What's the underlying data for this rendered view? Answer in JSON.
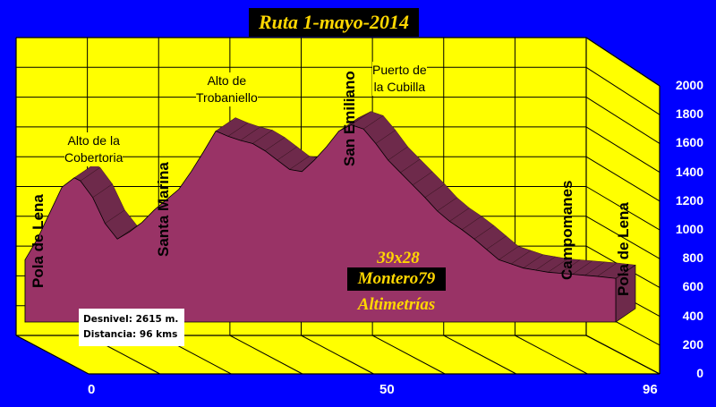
{
  "title": "Ruta 1-mayo-2014",
  "colors": {
    "background": "#0000ff",
    "wall": "#ffff00",
    "profile": "#993366",
    "profile_dark": "#5a1f3c",
    "text_gold": "#ffd700"
  },
  "chart_data": {
    "type": "area",
    "title": "Ruta 1-mayo-2014",
    "xlabel": "",
    "ylabel": "",
    "xlim": [
      0,
      96
    ],
    "ylim": [
      0,
      2000
    ],
    "x_ticks": [
      "0",
      "50",
      "96"
    ],
    "y_ticks": [
      "0",
      "200",
      "400",
      "600",
      "800",
      "1000",
      "1200",
      "1400",
      "1600",
      "1800",
      "2000"
    ],
    "grid": true,
    "series": [
      {
        "x": [
          0,
          2,
          4,
          6,
          8,
          9,
          11,
          13,
          15,
          17,
          19,
          21,
          23,
          25,
          27,
          29,
          31,
          33,
          35,
          37,
          39,
          41,
          43,
          45,
          47,
          49,
          51,
          53,
          55,
          57,
          59,
          61,
          63,
          65,
          67,
          69,
          71,
          73,
          75,
          77,
          79,
          81,
          83,
          85,
          87,
          89,
          91,
          93,
          96
        ],
        "y": [
          600,
          800,
          1050,
          1300,
          1390,
          1360,
          1200,
          950,
          800,
          870,
          960,
          1080,
          1180,
          1280,
          1450,
          1640,
          1840,
          1790,
          1750,
          1720,
          1650,
          1560,
          1470,
          1450,
          1560,
          1690,
          1840,
          1900,
          1860,
          1720,
          1560,
          1440,
          1320,
          1200,
          1070,
          970,
          890,
          800,
          700,
          600,
          560,
          520,
          500,
          480,
          470,
          460,
          450,
          440,
          420
        ]
      }
    ],
    "annotations": [
      {
        "text": "Pola de Lena",
        "x": 0,
        "orientation": "vertical"
      },
      {
        "text": "Alto de la Cobertoria",
        "x": 8,
        "orientation": "horizontal"
      },
      {
        "text": "Santa Marina",
        "x": 19,
        "orientation": "vertical"
      },
      {
        "text": "Alto de Trobaniello",
        "x": 31,
        "orientation": "horizontal"
      },
      {
        "text": "San Emiliano",
        "x": 45,
        "orientation": "vertical"
      },
      {
        "text": "Puerto de la Cubilla",
        "x": 53,
        "orientation": "horizontal"
      },
      {
        "text": "Campomanes",
        "x": 83,
        "orientation": "vertical"
      },
      {
        "text": "Pola de Lena",
        "x": 96,
        "orientation": "vertical"
      }
    ]
  },
  "labels": {
    "pola_start": "Pola de Lena",
    "cobertoria": "Alto de la\nCobertoria",
    "santa_marina": "Santa Marina",
    "trobaniello": "Alto de\nTrobaniello",
    "san_emiliano": "San Emiliano",
    "cubilla": "Puerto de\nla Cubilla",
    "campomanes": "Campomanes",
    "pola_end": "Pola de Lena"
  },
  "info": {
    "desnivel": "Desnivel: 2615 m.",
    "distancia": "Distancia:  96 kms"
  },
  "watermark": {
    "line1": "39x28",
    "line2": "Montero79",
    "line3": "Altimetrías"
  }
}
